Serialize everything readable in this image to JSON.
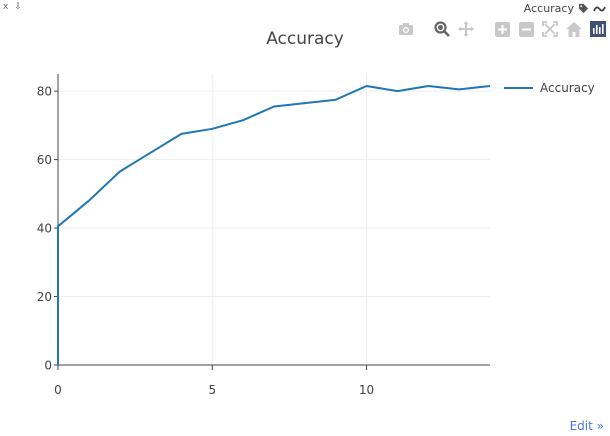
{
  "top_left": {
    "close_label": "x",
    "pin_label": "⇩"
  },
  "top_right": {
    "label": "Accuracy",
    "tag_icon": "tag-icon",
    "wave_icon": "wave-icon"
  },
  "modebar": {
    "icons": [
      "camera-icon",
      "zoom-icon",
      "pan-icon",
      "zoom-in-icon",
      "zoom-out-icon",
      "autoscale-icon",
      "home-icon",
      "plotly-logo-icon"
    ]
  },
  "edit_link": "Edit »",
  "colors": {
    "series": "#1f77b4",
    "grid": "#eeeeee",
    "axis": "#444444",
    "link": "#447adb"
  },
  "chart_data": {
    "type": "line",
    "title": "Accuracy",
    "xlabel": "",
    "ylabel": "",
    "xlim": [
      0,
      14
    ],
    "ylim": [
      0,
      85
    ],
    "x_ticks": [
      0,
      5,
      10
    ],
    "y_ticks": [
      0,
      20,
      40,
      60,
      80
    ],
    "grid": true,
    "legend_position": "top-right",
    "series": [
      {
        "name": "Accuracy",
        "color": "#1f77b4",
        "x": [
          0,
          0,
          1,
          2,
          3,
          4,
          5,
          6,
          7,
          8,
          9,
          10,
          11,
          12,
          13,
          14
        ],
        "y": [
          0,
          40.5,
          48,
          56.5,
          62,
          67.5,
          69,
          71.5,
          75.5,
          76.5,
          77.5,
          81.5,
          80,
          81.5,
          80.5,
          81.5
        ]
      }
    ]
  }
}
